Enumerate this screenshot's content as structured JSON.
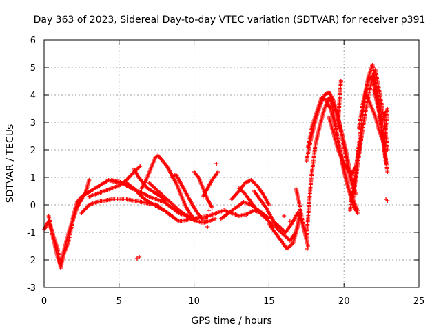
{
  "chart_data": {
    "type": "scatter",
    "title": "Day 363 of 2023, Sidereal Day-to-day VTEC variation (SDTVAR) for receiver p391",
    "xlabel": "GPS time / hours",
    "ylabel": "SDTVAR / TECUs",
    "xlim": [
      0,
      25
    ],
    "ylim": [
      -3,
      6
    ],
    "xticks": [
      "0",
      "5",
      "10",
      "15",
      "20",
      "25"
    ],
    "yticks": [
      "-3",
      "-2",
      "-1",
      "0",
      "1",
      "2",
      "3",
      "4",
      "5",
      "6"
    ],
    "grid": true,
    "marker": "+",
    "series": [
      {
        "name": "p391",
        "color": "#ff0000",
        "segments": [
          {
            "x": [
              0.0,
              0.3,
              0.6,
              0.9,
              1.1,
              1.3,
              1.6,
              1.9,
              2.2,
              2.5,
              2.8,
              3.0
            ],
            "y": [
              -0.9,
              -0.6,
              -1.1,
              -1.6,
              -2.3,
              -1.8,
              -1.4,
              -0.6,
              -0.1,
              0.2,
              0.5,
              0.9
            ]
          },
          {
            "x": [
              0.3,
              0.6,
              0.9,
              1.1,
              1.4,
              1.7,
              2.0
            ],
            "y": [
              -0.4,
              -1.2,
              -1.9,
              -2.2,
              -1.5,
              -0.9,
              -0.4
            ]
          },
          {
            "x": [
              1.9,
              2.2,
              2.5,
              2.8,
              3.1,
              3.4,
              3.7,
              4.0,
              4.3,
              4.6,
              5.0
            ],
            "y": [
              -0.5,
              0.1,
              0.3,
              0.4,
              0.5,
              0.6,
              0.7,
              0.8,
              0.9,
              0.85,
              0.8
            ]
          },
          {
            "x": [
              2.5,
              3.0,
              3.5,
              4.0,
              4.5,
              5.0,
              5.5,
              6.0,
              6.5,
              7.0,
              7.5,
              8.0,
              8.5,
              9.0,
              9.5,
              10.0,
              10.5,
              11.0,
              11.5
            ],
            "y": [
              -0.3,
              0.0,
              0.1,
              0.15,
              0.2,
              0.2,
              0.2,
              0.15,
              0.1,
              0.05,
              0.0,
              -0.2,
              -0.4,
              -0.6,
              -0.55,
              -0.5,
              -0.45,
              -0.4,
              -0.3
            ]
          },
          {
            "x": [
              3.0,
              3.5,
              4.0,
              4.5,
              5.0,
              5.5,
              6.0,
              6.4
            ],
            "y": [
              0.3,
              0.4,
              0.5,
              0.6,
              0.7,
              0.9,
              1.2,
              1.4
            ]
          },
          {
            "x": [
              4.5,
              5.0,
              5.5,
              6.0,
              6.5,
              7.0,
              7.5,
              8.0,
              8.5,
              9.0,
              9.5,
              10.0
            ],
            "y": [
              0.9,
              0.85,
              0.7,
              0.55,
              0.45,
              0.3,
              0.2,
              0.1,
              -0.1,
              -0.3,
              -0.4,
              -0.5
            ]
          },
          {
            "x": [
              5.5,
              6.0,
              6.5,
              7.0,
              7.5,
              8.0,
              8.5
            ],
            "y": [
              0.8,
              0.6,
              0.3,
              0.1,
              -0.05,
              -0.2,
              -0.4
            ]
          },
          {
            "x": [
              6.0,
              6.3,
              6.6,
              6.9,
              7.2,
              7.5,
              7.8,
              8.1
            ],
            "y": [
              1.3,
              1.0,
              0.8,
              0.6,
              0.5,
              0.4,
              0.3,
              0.1
            ]
          },
          {
            "x": [
              6.5,
              6.8,
              7.1,
              7.4,
              7.6,
              7.9,
              8.2,
              8.5,
              8.8,
              9.1,
              9.4,
              9.7,
              10.0
            ],
            "y": [
              0.6,
              0.9,
              1.3,
              1.7,
              1.8,
              1.6,
              1.4,
              1.1,
              0.8,
              0.4,
              0.0,
              -0.3,
              -0.5
            ]
          },
          {
            "x": [
              7.0,
              7.4,
              7.8,
              8.2,
              8.6,
              9.0,
              9.4,
              9.8,
              10.2,
              10.6,
              11.0,
              11.4
            ],
            "y": [
              0.8,
              0.6,
              0.4,
              0.2,
              0.0,
              -0.2,
              -0.35,
              -0.5,
              -0.6,
              -0.65,
              -0.6,
              -0.5
            ]
          },
          {
            "x": [
              8.5,
              8.8,
              9.1,
              9.4,
              9.7,
              10.0,
              10.3,
              10.6
            ],
            "y": [
              1.0,
              1.1,
              0.8,
              0.5,
              0.2,
              -0.1,
              -0.35,
              -0.55
            ]
          },
          {
            "x": [
              10.0,
              10.3,
              10.6,
              10.9,
              11.2
            ],
            "y": [
              1.2,
              1.0,
              0.6,
              0.2,
              -0.1
            ]
          },
          {
            "x": [
              10.6,
              10.9,
              11.2,
              11.6
            ],
            "y": [
              0.3,
              0.6,
              0.9,
              1.2
            ]
          },
          {
            "x": [
              11.5,
              12.0,
              12.5,
              13.0,
              13.5,
              14.0,
              14.5,
              15.0
            ],
            "y": [
              -0.3,
              -0.2,
              -0.3,
              -0.4,
              -0.35,
              -0.2,
              -0.3,
              -0.5
            ]
          },
          {
            "x": [
              11.8,
              12.3,
              12.8,
              13.3,
              13.8,
              14.3,
              14.8
            ],
            "y": [
              -0.5,
              -0.3,
              -0.1,
              0.1,
              0.0,
              -0.2,
              -0.4
            ]
          },
          {
            "x": [
              12.5,
              13.0,
              13.4,
              13.8,
              14.2,
              14.6,
              15.0
            ],
            "y": [
              0.2,
              0.5,
              0.8,
              0.9,
              0.7,
              0.4,
              0.0
            ]
          },
          {
            "x": [
              13.0,
              13.4,
              13.8,
              14.2,
              14.6,
              15.0,
              15.3
            ],
            "y": [
              0.6,
              0.4,
              0.1,
              -0.2,
              -0.4,
              -0.6,
              -0.8
            ]
          },
          {
            "x": [
              14.0,
              14.4,
              14.8,
              15.2,
              15.6,
              16.0,
              16.4,
              16.8,
              17.0
            ],
            "y": [
              0.5,
              0.2,
              -0.1,
              -0.5,
              -0.9,
              -1.1,
              -1.3,
              -1.0,
              -0.5
            ]
          },
          {
            "x": [
              15.0,
              15.4,
              15.8,
              16.2,
              16.6,
              16.9,
              17.1
            ],
            "y": [
              -0.7,
              -1.0,
              -1.3,
              -1.6,
              -1.4,
              -0.8,
              -0.2
            ]
          },
          {
            "x": [
              15.3,
              15.7,
              16.1,
              16.5,
              16.9,
              17.2,
              17.5,
              17.8,
              18.1,
              18.4,
              18.7,
              19.0,
              19.3,
              19.6,
              19.9,
              20.2,
              20.4,
              20.6
            ],
            "y": [
              -0.6,
              -0.8,
              -1.0,
              -0.7,
              -0.3,
              -0.6,
              -1.2,
              0.9,
              2.2,
              2.9,
              3.5,
              3.9,
              3.6,
              3.2,
              2.5,
              1.8,
              1.2,
              0.8
            ]
          },
          {
            "x": [
              16.8,
              17.0,
              17.3,
              17.6
            ],
            "y": [
              0.6,
              0.1,
              -0.8,
              -1.5
            ]
          },
          {
            "x": [
              17.5,
              17.8,
              18.1,
              18.4,
              18.7,
              19.0,
              19.3,
              19.6,
              19.9,
              20.2,
              20.5,
              20.8
            ],
            "y": [
              1.6,
              2.4,
              3.1,
              3.6,
              4.0,
              4.1,
              3.8,
              3.2,
              2.4,
              1.5,
              0.8,
              0.4
            ]
          },
          {
            "x": [
              17.6,
              17.9,
              18.2,
              18.5,
              18.8,
              19.1,
              19.4,
              19.7,
              20.0,
              20.3,
              20.6,
              20.9
            ],
            "y": [
              2.1,
              2.9,
              3.4,
              3.9,
              3.8,
              3.5,
              2.9,
              2.1,
              1.3,
              0.6,
              0.2,
              -0.2
            ]
          },
          {
            "x": [
              19.0,
              19.3,
              19.6,
              19.9,
              20.2,
              20.5,
              20.8,
              21.0,
              21.2
            ],
            "y": [
              3.2,
              2.6,
              2.0,
              1.6,
              1.3,
              1.1,
              1.4,
              2.0,
              2.6
            ]
          },
          {
            "x": [
              19.2,
              19.4,
              19.6,
              19.8,
              20.0,
              20.3,
              20.6,
              20.9
            ],
            "y": [
              3.6,
              3.0,
              2.3,
              1.8,
              1.2,
              0.6,
              0.0,
              -0.3
            ]
          },
          {
            "x": [
              19.6,
              19.7,
              19.8
            ],
            "y": [
              2.8,
              3.8,
              4.5
            ]
          },
          {
            "x": [
              20.4,
              20.7,
              21.0,
              21.3,
              21.6,
              21.9,
              22.2,
              22.5,
              22.8
            ],
            "y": [
              -0.2,
              0.8,
              2.2,
              3.5,
              4.6,
              5.1,
              4.2,
              2.8,
              1.5
            ]
          },
          {
            "x": [
              20.6,
              20.9,
              21.2,
              21.5,
              21.8,
              22.1,
              22.4,
              22.7,
              22.9
            ],
            "y": [
              0.2,
              1.4,
              2.6,
              3.6,
              4.4,
              4.9,
              4.0,
              3.0,
              2.0
            ]
          },
          {
            "x": [
              21.0,
              21.3,
              21.6,
              21.9,
              22.2,
              22.5,
              22.8
            ],
            "y": [
              2.8,
              3.8,
              4.5,
              4.7,
              3.8,
              3.0,
              3.4
            ]
          },
          {
            "x": [
              21.5,
              21.8,
              22.1,
              22.4,
              22.7,
              22.9
            ],
            "y": [
              4.0,
              3.6,
              3.2,
              2.6,
              2.2,
              3.5
            ]
          },
          {
            "x": [
              22.0,
              22.3,
              22.6,
              22.9
            ],
            "y": [
              4.2,
              3.5,
              2.5,
              1.2
            ]
          }
        ],
        "points": {
          "x": [
            6.2,
            6.35,
            11.5,
            11.0,
            10.8,
            10.9,
            17.55,
            22.8,
            22.9,
            16.0,
            16.4,
            19.8
          ],
          "y": [
            -1.95,
            -1.9,
            1.5,
            -0.2,
            -0.5,
            -0.8,
            -1.6,
            0.2,
            0.15,
            -0.4,
            -0.6,
            4.5
          ]
        }
      }
    ]
  }
}
